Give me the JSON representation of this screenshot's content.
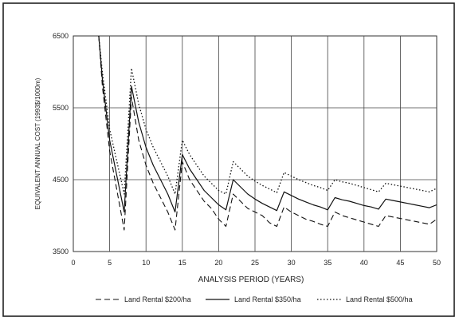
{
  "chart_data": {
    "type": "line",
    "title": "",
    "xlabel": "ANALYSIS PERIOD (YEARS)",
    "ylabel": "EQUIVALENT ANNUAL COST (1993$/1000m)",
    "xlim": [
      0,
      50
    ],
    "ylim": [
      3500,
      6500
    ],
    "xticks": [
      0,
      5,
      10,
      15,
      20,
      25,
      30,
      35,
      40,
      45,
      50
    ],
    "yticks": [
      3500,
      4500,
      5500,
      6500
    ],
    "grid": true,
    "legend_position": "bottom",
    "series": [
      {
        "name": "Land Rental $200/ha",
        "style": "dashed",
        "x": [
          3.5,
          4,
          5,
          6,
          7,
          8,
          9,
          10,
          11,
          12,
          13,
          14,
          15,
          16,
          17,
          18,
          19,
          20,
          21,
          22,
          23,
          24,
          25,
          26,
          27,
          28,
          29,
          30,
          31,
          32,
          33,
          34,
          35,
          36,
          37,
          38,
          39,
          40,
          41,
          42,
          43,
          44,
          45,
          46,
          47,
          48,
          49,
          50
        ],
        "values": [
          6500,
          5800,
          4900,
          4350,
          3800,
          5650,
          5050,
          4700,
          4450,
          4250,
          4050,
          3800,
          4750,
          4500,
          4350,
          4200,
          4100,
          3950,
          3850,
          4300,
          4200,
          4100,
          4050,
          4000,
          3900,
          3850,
          4120,
          4050,
          4000,
          3950,
          3920,
          3880,
          3850,
          4050,
          4000,
          3970,
          3940,
          3910,
          3880,
          3850,
          4000,
          3980,
          3960,
          3940,
          3920,
          3900,
          3880,
          3950
        ]
      },
      {
        "name": "Land Rental $350/ha",
        "style": "solid",
        "x": [
          3.5,
          4,
          5,
          6,
          7,
          8,
          9,
          10,
          11,
          12,
          13,
          14,
          15,
          16,
          17,
          18,
          19,
          20,
          21,
          22,
          23,
          24,
          25,
          26,
          27,
          28,
          29,
          30,
          31,
          32,
          33,
          34,
          35,
          36,
          37,
          38,
          39,
          40,
          41,
          42,
          43,
          44,
          45,
          46,
          47,
          48,
          49,
          50
        ],
        "values": [
          6500,
          5900,
          5050,
          4550,
          4050,
          5800,
          5300,
          4950,
          4700,
          4500,
          4300,
          4050,
          4850,
          4650,
          4500,
          4350,
          4250,
          4150,
          4080,
          4500,
          4400,
          4300,
          4230,
          4170,
          4120,
          4070,
          4330,
          4280,
          4230,
          4190,
          4150,
          4120,
          4080,
          4250,
          4220,
          4200,
          4170,
          4140,
          4120,
          4090,
          4230,
          4210,
          4190,
          4170,
          4150,
          4130,
          4110,
          4150
        ]
      },
      {
        "name": "Land Rental $500/ha",
        "style": "dotted",
        "x": [
          3.5,
          4,
          5,
          6,
          7,
          8,
          9,
          10,
          11,
          12,
          13,
          14,
          15,
          16,
          17,
          18,
          19,
          20,
          21,
          22,
          23,
          24,
          25,
          26,
          27,
          28,
          29,
          30,
          31,
          32,
          33,
          34,
          35,
          36,
          37,
          38,
          39,
          40,
          41,
          42,
          43,
          44,
          45,
          46,
          47,
          48,
          49,
          50
        ],
        "values": [
          6500,
          6000,
          5200,
          4750,
          4300,
          6050,
          5550,
          5200,
          4950,
          4750,
          4550,
          4300,
          5050,
          4850,
          4700,
          4550,
          4450,
          4350,
          4300,
          4750,
          4650,
          4550,
          4480,
          4420,
          4370,
          4320,
          4600,
          4550,
          4500,
          4460,
          4420,
          4390,
          4350,
          4500,
          4470,
          4450,
          4420,
          4390,
          4360,
          4330,
          4450,
          4430,
          4410,
          4390,
          4370,
          4350,
          4330,
          4380
        ]
      }
    ]
  }
}
